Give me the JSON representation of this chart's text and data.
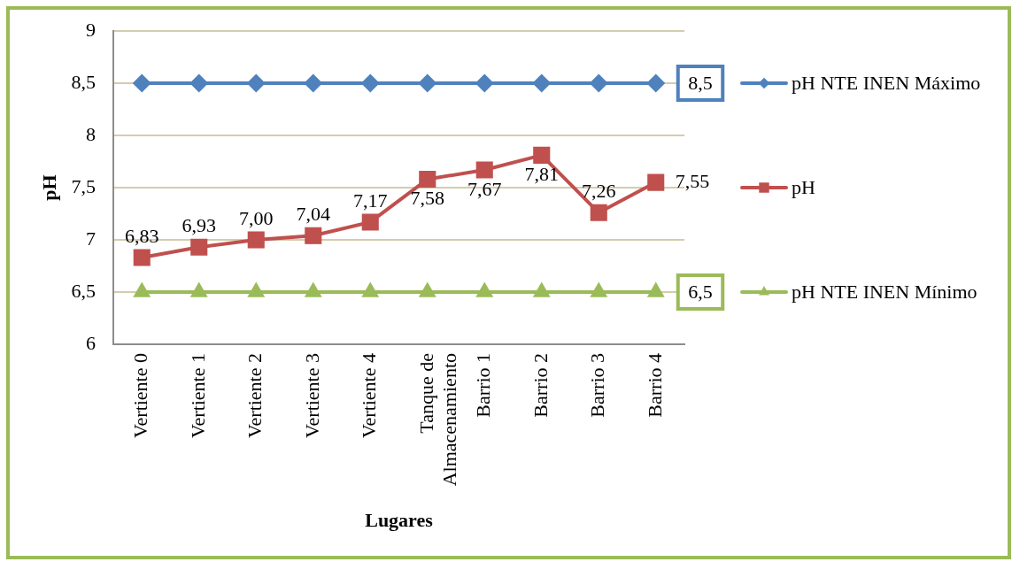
{
  "chart_data": {
    "type": "line",
    "xlabel": "Lugares",
    "ylabel": "pH",
    "categories": [
      "Vertiente 0",
      "Vertiente 1",
      "Vertiente 2",
      "Vertiente 3",
      "Vertiente 4",
      "Tanque de Almacenamiento",
      "Barrio 1",
      "Barrio 2",
      "Barrio 3",
      "Barrio 4"
    ],
    "series": [
      {
        "name": "pH NTE INEN Máximo",
        "color": "#4f81bd",
        "marker": "diamond",
        "values": [
          8.5,
          8.5,
          8.5,
          8.5,
          8.5,
          8.5,
          8.5,
          8.5,
          8.5,
          8.5
        ],
        "value_labels": [
          null,
          null,
          null,
          null,
          null,
          null,
          null,
          null,
          null,
          "8,5"
        ]
      },
      {
        "name": "pH",
        "color": "#c0504d",
        "marker": "square",
        "values": [
          6.83,
          6.93,
          7.0,
          7.04,
          7.17,
          7.58,
          7.67,
          7.81,
          7.26,
          7.55
        ],
        "value_labels": [
          "6,83",
          "6,93",
          "7,00",
          "7,04",
          "7,17",
          "7,58",
          "7,67",
          "7,81",
          "7,26",
          "7,55"
        ]
      },
      {
        "name": "pH NTE INEN Mínimo",
        "color": "#9bbb59",
        "marker": "triangle",
        "values": [
          6.5,
          6.5,
          6.5,
          6.5,
          6.5,
          6.5,
          6.5,
          6.5,
          6.5,
          6.5
        ],
        "value_labels": [
          null,
          null,
          null,
          null,
          null,
          null,
          null,
          null,
          null,
          "6,5"
        ]
      }
    ],
    "ylim": [
      6,
      9
    ],
    "yticks": [
      6,
      {
        "value": 6.5,
        "label": "6,5"
      },
      7,
      {
        "value": 7.5,
        "label": "7,5"
      },
      8,
      {
        "value": 8.5,
        "label": "8,5"
      },
      9
    ],
    "grid": "y",
    "legend": "right",
    "line_style": "solid"
  }
}
